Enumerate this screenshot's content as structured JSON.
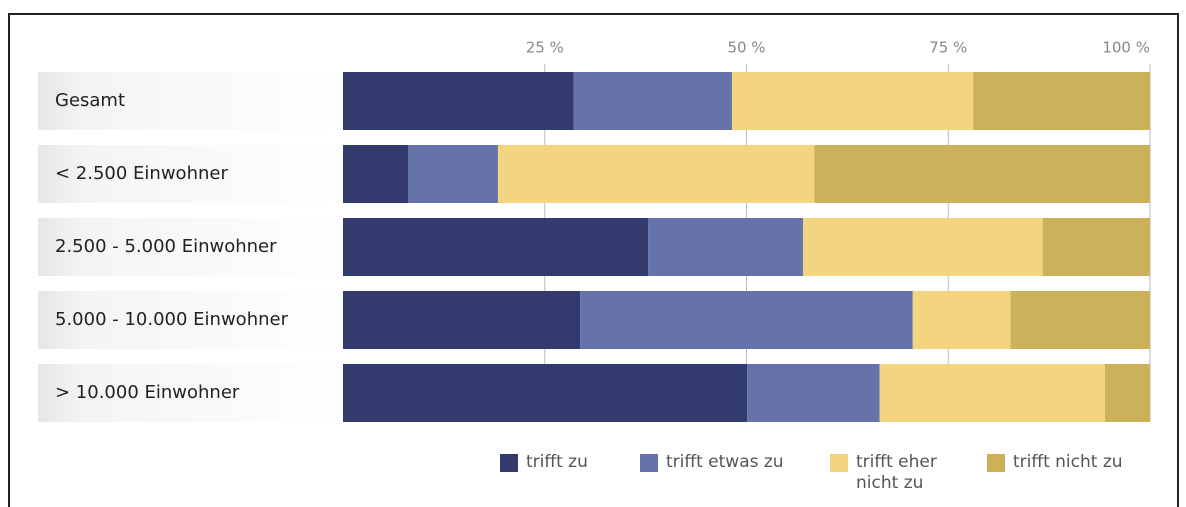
{
  "chart_data": {
    "type": "stacked-bar-horizontal",
    "categories": [
      "Gesamt",
      "< 2.500 Einwohner",
      "2.500 - 5.000 Einwohner",
      "5.000 - 10.000 Einwohner",
      "> 10.000 Einwohner"
    ],
    "series": [
      {
        "name": "trifft zu",
        "color": "#323a6e",
        "values": [
          28.6,
          8.1,
          37.8,
          29.4,
          50.1
        ]
      },
      {
        "name": "trifft etwas zu",
        "color": "#6673ab",
        "values": [
          19.6,
          11.1,
          19.2,
          41.2,
          16.4
        ]
      },
      {
        "name": "trifft eher nicht zu",
        "color": "#f4d57f",
        "values": [
          29.9,
          39.2,
          29.7,
          12.1,
          27.9
        ]
      },
      {
        "name": "trifft nicht zu",
        "color": "#cdb05a",
        "values": [
          21.9,
          41.6,
          13.3,
          17.3,
          5.6
        ]
      }
    ],
    "xlim": [
      0,
      100
    ],
    "xticks": [
      {
        "value": 25,
        "label": "25 %"
      },
      {
        "value": 50,
        "label": "50 %"
      },
      {
        "value": 75,
        "label": "75 %"
      },
      {
        "value": 100,
        "label": "100 %"
      }
    ],
    "grid": true
  }
}
